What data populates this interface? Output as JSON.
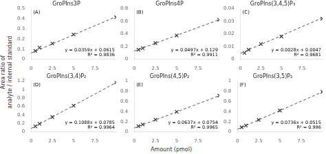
{
  "xlabel": "Amount (pmol)",
  "ylabel": "Area ratio of\nanalyte / internal standard",
  "chart_data": [
    {
      "type": "scatter",
      "title": "GroPIns3P",
      "annotations": [
        "(A)",
        "y = 0.0359x + 0.0615\nR² = 0.9836"
      ],
      "xlim": [
        0,
        10
      ],
      "xticks": [
        0,
        2.5,
        5,
        7.5
      ],
      "ylim": [
        0,
        0.5
      ],
      "yticks": [
        0,
        0.1,
        0.2,
        0.3,
        0.4,
        0.5
      ],
      "grid": false,
      "series": [
        {
          "type": "scatter",
          "marker": "x",
          "color": "#333333",
          "x": [
            0.5,
            1.0,
            2.5,
            5.0,
            10.0
          ],
          "values": [
            0.082,
            0.115,
            0.155,
            0.245,
            0.415
          ]
        },
        {
          "type": "line",
          "line_style": "dashed",
          "color": "#555555",
          "x": [
            0,
            10
          ],
          "values": [
            0.0615,
            0.4205
          ]
        }
      ]
    },
    {
      "type": "scatter",
      "title": "GroPIns4P",
      "annotations": [
        "(B)",
        "y = 0.0497x + 0.129\nR² = 0.9911"
      ],
      "xlim": [
        0,
        10
      ],
      "xticks": [
        0,
        2.5,
        5,
        7.5
      ],
      "ylim": [
        0,
        0.8
      ],
      "yticks": [
        0,
        0.2,
        0.4,
        0.6,
        0.8
      ],
      "grid": false,
      "series": [
        {
          "type": "scatter",
          "marker": "x",
          "color": "#333333",
          "x": [
            0.5,
            1.0,
            2.5,
            5.0,
            10.0
          ],
          "values": [
            0.15,
            0.175,
            0.255,
            0.375,
            0.625
          ]
        },
        {
          "type": "line",
          "line_style": "dashed",
          "color": "#555555",
          "x": [
            0,
            10
          ],
          "values": [
            0.129,
            0.626
          ]
        }
      ]
    },
    {
      "type": "scatter",
      "title": "GroPIns(3,4,5)P₃",
      "annotations": [
        "(C)",
        "y = 0.0028x + 0.0047\nR² = 0.9681"
      ],
      "xlim": [
        0,
        10
      ],
      "xticks": [
        0,
        2.5,
        5,
        7.5
      ],
      "ylim": [
        0,
        0.04
      ],
      "yticks": [
        0,
        0.01,
        0.02,
        0.03,
        0.04
      ],
      "grid": false,
      "series": [
        {
          "type": "scatter",
          "marker": "x",
          "color": "#333333",
          "x": [
            0.5,
            1.0,
            2.5,
            5.0,
            10.0
          ],
          "values": [
            0.005,
            0.0075,
            0.012,
            0.018,
            0.032
          ]
        },
        {
          "type": "line",
          "line_style": "dashed",
          "color": "#555555",
          "x": [
            0,
            10
          ],
          "values": [
            0.0047,
            0.0327
          ]
        }
      ]
    },
    {
      "type": "scatter",
      "title": "GroPIns(3,4)P₂",
      "annotations": [
        "(D)",
        "y = 0.1088x + 0.0785\nR² = 0.9964"
      ],
      "xlim": [
        0,
        10
      ],
      "xticks": [
        0,
        2.5,
        5,
        7.5
      ],
      "ylim": [
        0,
        1.2
      ],
      "yticks": [
        0,
        0.2,
        0.4,
        0.6,
        0.8,
        1,
        1.2
      ],
      "grid": false,
      "series": [
        {
          "type": "scatter",
          "marker": "x",
          "color": "#333333",
          "x": [
            0.5,
            1.0,
            2.5,
            5.0,
            10.0
          ],
          "values": [
            0.13,
            0.19,
            0.35,
            0.62,
            1.17
          ]
        },
        {
          "type": "line",
          "line_style": "dashed",
          "color": "#555555",
          "x": [
            0,
            10
          ],
          "values": [
            0.0785,
            1.1665
          ]
        }
      ]
    },
    {
      "type": "scatter",
      "title": "GroPIns(4,5)P₂",
      "annotations": [
        "(E)",
        "y = 0.0637x + 0.0754\nR² = 0.9965"
      ],
      "xlim": [
        0,
        10
      ],
      "xticks": [
        0,
        2.5,
        5,
        7.5
      ],
      "ylim": [
        0,
        1
      ],
      "yticks": [
        0,
        0.2,
        0.4,
        0.6,
        0.8,
        1
      ],
      "grid": false,
      "series": [
        {
          "type": "scatter",
          "marker": "x",
          "color": "#333333",
          "x": [
            0.5,
            1.0,
            2.5,
            5.0,
            10.0
          ],
          "values": [
            0.112,
            0.145,
            0.24,
            0.395,
            0.715
          ]
        },
        {
          "type": "line",
          "line_style": "dashed",
          "color": "#555555",
          "x": [
            0,
            10
          ],
          "values": [
            0.0754,
            0.7124
          ]
        }
      ]
    },
    {
      "type": "scatter",
      "title": "GroPIns(3,5)P₂",
      "annotations": [
        "(F)",
        "y = 0.0736x + 0.0515\nR² = 0.996"
      ],
      "xlim": [
        0,
        10
      ],
      "xticks": [
        0,
        2.5,
        5,
        7.5
      ],
      "ylim": [
        0,
        1
      ],
      "yticks": [
        0,
        0.2,
        0.4,
        0.6,
        0.8,
        1
      ],
      "grid": false,
      "series": [
        {
          "type": "scatter",
          "marker": "x",
          "color": "#333333",
          "x": [
            0.5,
            1.0,
            2.5,
            5.0,
            10.0
          ],
          "values": [
            0.09,
            0.125,
            0.235,
            0.42,
            0.79
          ]
        },
        {
          "type": "line",
          "line_style": "dashed",
          "color": "#555555",
          "x": [
            0,
            10
          ],
          "values": [
            0.0515,
            0.7875
          ]
        }
      ]
    }
  ]
}
